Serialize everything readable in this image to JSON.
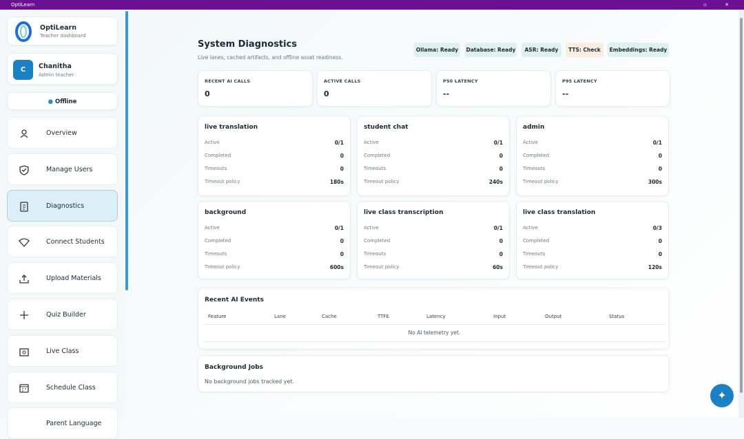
{
  "titlebar": {
    "title": "OptiLearn"
  },
  "sidebar": {
    "brand": {
      "name": "OptiLearn",
      "subtitle": "Teacher dashboard"
    },
    "user": {
      "initial": "C",
      "name": "Chanitha",
      "role": "Admin teacher"
    },
    "status": "Offline",
    "nav": [
      {
        "label": "Overview",
        "active": false
      },
      {
        "label": "Manage Users",
        "active": false
      },
      {
        "label": "Diagnostics",
        "active": true
      },
      {
        "label": "Connect Students",
        "active": false
      },
      {
        "label": "Upload Materials",
        "active": false
      },
      {
        "label": "Quiz Builder",
        "active": false
      },
      {
        "label": "Live Class",
        "active": false
      },
      {
        "label": "Schedule Class",
        "active": false
      },
      {
        "label": "Parent Language",
        "active": false
      }
    ]
  },
  "header": {
    "title": "System Diagnostics",
    "subtitle": "Live lanes, cached artifacts, and offline asset readiness.",
    "badges": [
      {
        "label": "Ollama: Ready",
        "state": "ready"
      },
      {
        "label": "Database: Ready",
        "state": "ready"
      },
      {
        "label": "ASR: Ready",
        "state": "ready"
      },
      {
        "label": "TTS: Check",
        "state": "check"
      },
      {
        "label": "Embeddings: Ready",
        "state": "ready"
      }
    ]
  },
  "stats": [
    {
      "label": "RECENT AI CALLS",
      "value": "0"
    },
    {
      "label": "ACTIVE CALLS",
      "value": "0"
    },
    {
      "label": "P50 LATENCY",
      "value": "--"
    },
    {
      "label": "P95 LATENCY",
      "value": "--"
    }
  ],
  "lanes": [
    {
      "name": "live translation",
      "rows": [
        {
          "label": "Active",
          "value": "0/1"
        },
        {
          "label": "Completed",
          "value": "0"
        },
        {
          "label": "Timeouts",
          "value": "0"
        },
        {
          "label": "Timeout policy",
          "value": "180s"
        }
      ]
    },
    {
      "name": "student chat",
      "rows": [
        {
          "label": "Active",
          "value": "0/1"
        },
        {
          "label": "Completed",
          "value": "0"
        },
        {
          "label": "Timeouts",
          "value": "0"
        },
        {
          "label": "Timeout policy",
          "value": "240s"
        }
      ]
    },
    {
      "name": "admin",
      "rows": [
        {
          "label": "Active",
          "value": "0/1"
        },
        {
          "label": "Completed",
          "value": "0"
        },
        {
          "label": "Timeouts",
          "value": "0"
        },
        {
          "label": "Timeout policy",
          "value": "300s"
        }
      ]
    },
    {
      "name": "background",
      "rows": [
        {
          "label": "Active",
          "value": "0/1"
        },
        {
          "label": "Completed",
          "value": "0"
        },
        {
          "label": "Timeouts",
          "value": "0"
        },
        {
          "label": "Timeout policy",
          "value": "600s"
        }
      ]
    },
    {
      "name": "live class transcription",
      "rows": [
        {
          "label": "Active",
          "value": "0/1"
        },
        {
          "label": "Completed",
          "value": "0"
        },
        {
          "label": "Timeouts",
          "value": "0"
        },
        {
          "label": "Timeout policy",
          "value": "60s"
        }
      ]
    },
    {
      "name": "live class translation",
      "rows": [
        {
          "label": "Active",
          "value": "0/3"
        },
        {
          "label": "Completed",
          "value": "0"
        },
        {
          "label": "Timeouts",
          "value": "0"
        },
        {
          "label": "Timeout policy",
          "value": "120s"
        }
      ]
    }
  ],
  "events": {
    "title": "Recent AI Events",
    "columns": [
      "Feature",
      "Lane",
      "Cache",
      "TTFE",
      "Latency",
      "Input",
      "Output",
      "Status"
    ],
    "empty": "No AI telemetry yet."
  },
  "jobs": {
    "title": "Background Jobs",
    "empty": "No background jobs tracked yet."
  }
}
